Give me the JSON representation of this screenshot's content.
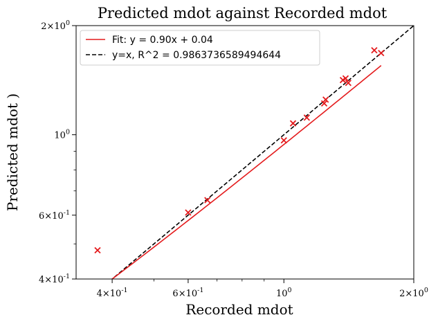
{
  "chart_data": {
    "type": "scatter",
    "title": "Predicted mdot against Recorded mdot",
    "xlabel": "Recorded mdot",
    "ylabel": "Predicted mdot )",
    "xscale": "log",
    "yscale": "log",
    "xlim": [
      0.33,
      2.0
    ],
    "ylim": [
      0.4,
      2.0
    ],
    "grid": false,
    "legend_position": "top-left",
    "x_ticks": [
      {
        "value": 0.4,
        "mantissa": "4",
        "exponent": "-1"
      },
      {
        "value": 0.6,
        "mantissa": "6",
        "exponent": "-1"
      },
      {
        "value": 1.0,
        "mantissa": "",
        "exponent": "0"
      },
      {
        "value": 2.0,
        "mantissa": "2",
        "exponent": "0"
      }
    ],
    "y_ticks": [
      {
        "value": 0.4,
        "mantissa": "4",
        "exponent": "-1"
      },
      {
        "value": 0.6,
        "mantissa": "6",
        "exponent": "-1"
      },
      {
        "value": 1.0,
        "mantissa": "",
        "exponent": "0"
      },
      {
        "value": 2.0,
        "mantissa": "2",
        "exponent": "0"
      }
    ],
    "points": [
      {
        "x": 0.37,
        "y": 0.48
      },
      {
        "x": 0.6,
        "y": 0.61
      },
      {
        "x": 0.665,
        "y": 0.66
      },
      {
        "x": 1.0,
        "y": 0.965
      },
      {
        "x": 1.05,
        "y": 1.075
      },
      {
        "x": 1.13,
        "y": 1.115
      },
      {
        "x": 1.24,
        "y": 1.22
      },
      {
        "x": 1.25,
        "y": 1.25
      },
      {
        "x": 1.37,
        "y": 1.415
      },
      {
        "x": 1.39,
        "y": 1.43
      },
      {
        "x": 1.41,
        "y": 1.39
      },
      {
        "x": 1.62,
        "y": 1.71
      },
      {
        "x": 1.68,
        "y": 1.68
      }
    ],
    "marker_color": "#e41a1c",
    "fit_line": {
      "label": "Fit: y = 0.90x + 0.04",
      "slope": 0.9,
      "intercept": 0.04,
      "x_range": [
        0.37,
        1.68
      ],
      "color": "#e41a1c",
      "style": "solid"
    },
    "identity_line": {
      "label": "y=x, R^2 = 0.9863736589494644",
      "x_range": [
        0.33,
        2.0
      ],
      "color": "#000000",
      "style": "dashed"
    }
  }
}
